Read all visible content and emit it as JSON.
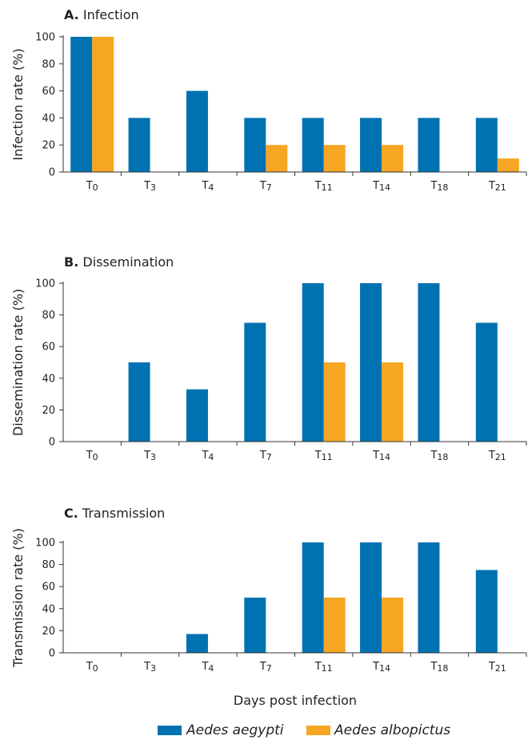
{
  "colors": {
    "aegypti": "#0072b2",
    "albopictus": "#f6a623",
    "axis": "#333333"
  },
  "legend": [
    {
      "label": "Aedes aegypti",
      "color_key": "aegypti"
    },
    {
      "label": "Aedes albopictus",
      "color_key": "albopictus"
    }
  ],
  "xlabel": "Days post infection",
  "chart_data": [
    {
      "type": "bar",
      "letter": "A.",
      "title": "Infection",
      "ylabel": "Infection rate (%)",
      "ylim": [
        0,
        100
      ],
      "yticks": [
        0,
        20,
        40,
        60,
        80,
        100
      ],
      "categories": [
        "T0",
        "T3",
        "T4",
        "T7",
        "T11",
        "T14",
        "T18",
        "T21"
      ],
      "series": [
        {
          "name": "Aedes aegypti",
          "color_key": "aegypti",
          "values": [
            100,
            40,
            60,
            40,
            40,
            40,
            40,
            40
          ]
        },
        {
          "name": "Aedes albopictus",
          "color_key": "albopictus",
          "values": [
            100,
            0,
            0,
            20,
            20,
            20,
            0,
            10
          ]
        }
      ]
    },
    {
      "type": "bar",
      "letter": "B.",
      "title": "Dissemination",
      "ylabel": "Dissemination rate (%)",
      "ylim": [
        0,
        100
      ],
      "yticks": [
        0,
        20,
        40,
        60,
        80,
        100
      ],
      "categories": [
        "T0",
        "T3",
        "T4",
        "T7",
        "T11",
        "T14",
        "T18",
        "T21"
      ],
      "series": [
        {
          "name": "Aedes aegypti",
          "color_key": "aegypti",
          "values": [
            0,
            50,
            33,
            75,
            100,
            100,
            100,
            75
          ]
        },
        {
          "name": "Aedes albopictus",
          "color_key": "albopictus",
          "values": [
            0,
            0,
            0,
            0,
            50,
            50,
            0,
            0
          ]
        }
      ]
    },
    {
      "type": "bar",
      "letter": "C.",
      "title": "Transmission",
      "ylabel": "Transmission rate (%)",
      "ylim": [
        0,
        100
      ],
      "yticks": [
        0,
        20,
        40,
        60,
        80,
        100
      ],
      "categories": [
        "T0",
        "T3",
        "T4",
        "T7",
        "T11",
        "T14",
        "T18",
        "T21"
      ],
      "series": [
        {
          "name": "Aedes aegypti",
          "color_key": "aegypti",
          "values": [
            0,
            0,
            17,
            50,
            100,
            100,
            100,
            75
          ]
        },
        {
          "name": "Aedes albopictus",
          "color_key": "albopictus",
          "values": [
            0,
            0,
            0,
            0,
            50,
            50,
            0,
            0
          ]
        }
      ]
    }
  ]
}
